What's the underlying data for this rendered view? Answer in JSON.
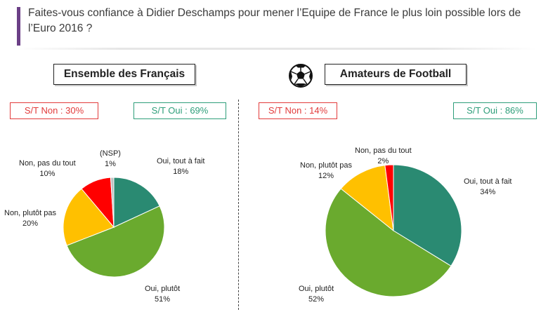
{
  "question": "Faites-vous confiance à Didier Deschamps pour mener l’Equipe de France le plus loin possible lors de l’Euro 2016 ?",
  "left": {
    "title": "Ensemble des Français",
    "st_non": "S/T Non : 30%",
    "st_oui": "S/T Oui : 69%"
  },
  "right": {
    "title": "Amateurs de Football",
    "icon": "soccer-ball-icon",
    "st_non": "S/T Non : 14%",
    "st_oui": "S/T Oui : 86%"
  },
  "colors": {
    "oui_tout_a_fait": "#2a8a72",
    "oui_plutot": "#6aaa2e",
    "non_plutot_pas": "#ffc000",
    "non_pas_du_tout": "#ff0000",
    "nsp": "#bfbfbf",
    "st_non": "#e23b3b",
    "st_oui": "#2e9e7a"
  },
  "chart_data": [
    {
      "type": "pie",
      "title": "Ensemble des Français",
      "slices": [
        {
          "label": "Oui, tout à fait",
          "value": 18,
          "display": "18%"
        },
        {
          "label": "Oui, plutôt",
          "value": 51,
          "display": "51%"
        },
        {
          "label": "Non, plutôt pas",
          "value": 20,
          "display": "20%"
        },
        {
          "label": "Non, pas du tout",
          "value": 10,
          "display": "10%"
        },
        {
          "label": "(NSP)",
          "value": 1,
          "display": "1%"
        }
      ]
    },
    {
      "type": "pie",
      "title": "Amateurs de Football",
      "slices": [
        {
          "label": "Oui, tout à fait",
          "value": 34,
          "display": "34%"
        },
        {
          "label": "Oui, plutôt",
          "value": 52,
          "display": "52%"
        },
        {
          "label": "Non, plutôt pas",
          "value": 12,
          "display": "12%"
        },
        {
          "label": "Non, pas du tout",
          "value": 2,
          "display": "2%"
        }
      ]
    }
  ]
}
